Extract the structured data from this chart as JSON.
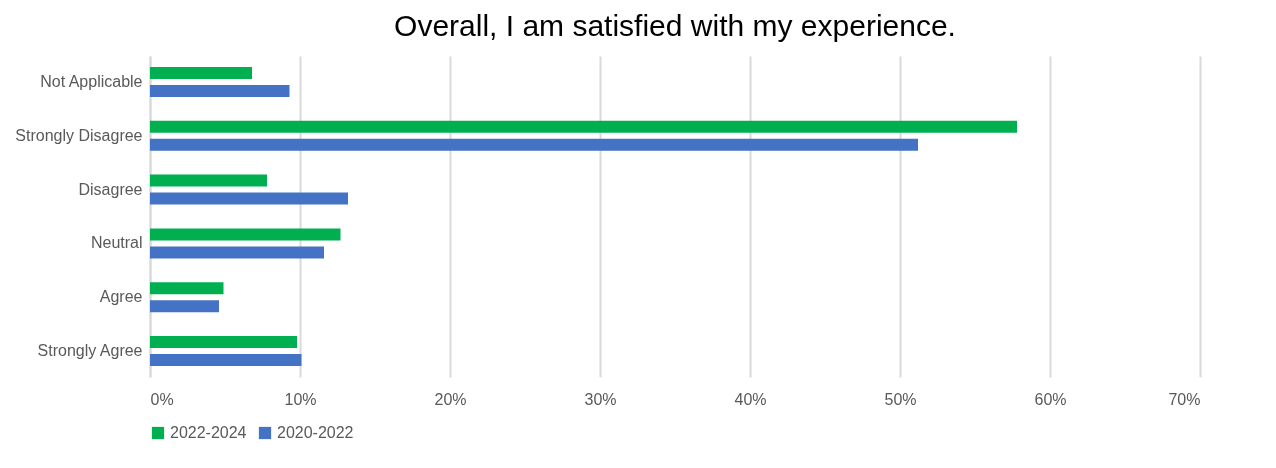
{
  "chart_data": {
    "type": "bar",
    "orientation": "horizontal",
    "title": "Overall, I am satisfied with my experience.",
    "categories": [
      "Not Applicable",
      "Strongly Disagree",
      "Disagree",
      "Neutral",
      "Agree",
      "Strongly Agree"
    ],
    "series": [
      {
        "name": "2022-2024",
        "color": "#00b050",
        "values": [
          6.8,
          57.8,
          7.8,
          12.7,
          4.9,
          9.8
        ]
      },
      {
        "name": "2020-2022",
        "color": "#4472c4",
        "values": [
          9.3,
          51.2,
          13.2,
          11.6,
          4.6,
          10.1
        ]
      }
    ],
    "xlim": [
      0,
      70
    ],
    "xticks": [
      {
        "value": 0,
        "label": "0%"
      },
      {
        "value": 10,
        "label": "10%"
      },
      {
        "value": 20,
        "label": "20%"
      },
      {
        "value": 30,
        "label": "30%"
      },
      {
        "value": 40,
        "label": "40%"
      },
      {
        "value": 50,
        "label": "50%"
      },
      {
        "value": 60,
        "label": "60%"
      },
      {
        "value": 70,
        "label": "70%"
      }
    ],
    "grid": "x",
    "legend": "bottom"
  }
}
